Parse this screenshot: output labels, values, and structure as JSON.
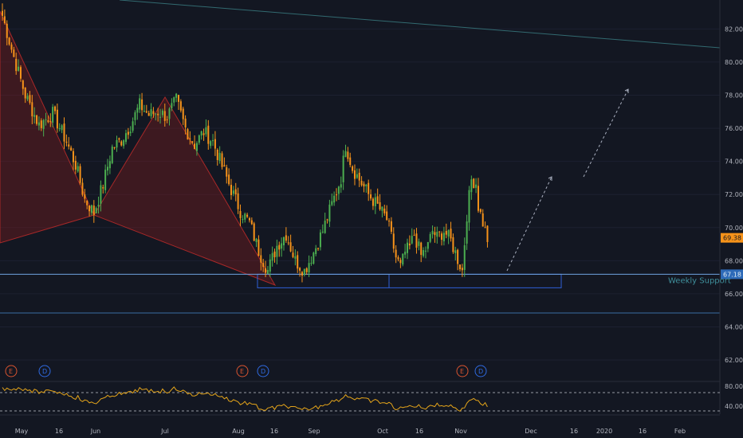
{
  "chart_data": {
    "type": "candlestick",
    "y_axis": {
      "ticks": [
        62,
        64,
        66,
        68,
        70,
        72,
        74,
        76,
        78,
        80,
        82
      ],
      "range": [
        60.75,
        83.75
      ]
    },
    "x_axis": {
      "ticks": [
        "May",
        "16",
        "Jun",
        "Jul",
        "Aug",
        "16",
        "Sep",
        "Oct",
        "16",
        "Nov",
        "Dec",
        "16",
        "2020",
        "16",
        "Feb"
      ]
    },
    "price_label": "69.38",
    "support_label": "67.18",
    "support_text": "Weekly Support",
    "colors": {
      "up": "#4caf50",
      "down": "#f7931a",
      "support": "#4a90d9",
      "pattern": "#8b1e1e",
      "rsi": "#e5a51a"
    },
    "events": [
      "E",
      "D",
      "E",
      "D",
      "E",
      "D"
    ],
    "rsi": {
      "ticks": [
        "80.00",
        "40.00"
      ],
      "levels": [
        70,
        30
      ]
    },
    "candles_anchor_closes": [
      [
        0,
        82.8
      ],
      [
        5,
        80.3
      ],
      [
        10,
        78.0
      ],
      [
        16,
        76.2
      ],
      [
        22,
        76.9
      ],
      [
        28,
        75.2
      ],
      [
        32,
        73.8
      ],
      [
        36,
        71.7
      ],
      [
        40,
        70.9
      ],
      [
        44,
        72.6
      ],
      [
        48,
        74.8
      ],
      [
        52,
        75.3
      ],
      [
        56,
        76.2
      ],
      [
        60,
        77.4
      ],
      [
        64,
        76.8
      ],
      [
        68,
        77.0
      ],
      [
        72,
        76.7
      ],
      [
        76,
        77.7
      ],
      [
        80,
        76.0
      ],
      [
        84,
        75.0
      ],
      [
        88,
        75.8
      ],
      [
        92,
        75.2
      ],
      [
        96,
        73.7
      ],
      [
        100,
        72.3
      ],
      [
        104,
        71.0
      ],
      [
        108,
        70.3
      ],
      [
        112,
        68.6
      ],
      [
        116,
        67.4
      ],
      [
        120,
        68.9
      ],
      [
        124,
        69.6
      ],
      [
        128,
        68.0
      ],
      [
        132,
        67.4
      ],
      [
        136,
        68.5
      ],
      [
        140,
        69.8
      ],
      [
        144,
        71.4
      ],
      [
        148,
        73.0
      ],
      [
        150,
        75.0
      ],
      [
        153,
        73.6
      ],
      [
        156,
        72.9
      ],
      [
        160,
        72.0
      ],
      [
        164,
        71.3
      ],
      [
        168,
        70.5
      ],
      [
        170,
        69.4
      ],
      [
        172,
        68.2
      ],
      [
        174,
        67.6
      ],
      [
        176,
        68.5
      ],
      [
        178,
        68.8
      ],
      [
        180,
        69.6
      ],
      [
        183,
        68.3
      ],
      [
        186,
        68.9
      ],
      [
        188,
        69.8
      ],
      [
        190,
        69.4
      ],
      [
        193,
        69.8
      ],
      [
        196,
        69.2
      ],
      [
        199,
        68.1
      ],
      [
        201,
        67.4
      ],
      [
        203,
        70.8
      ],
      [
        205,
        72.9
      ],
      [
        207,
        72.7
      ],
      [
        208,
        71.3
      ],
      [
        210,
        70.3
      ],
      [
        212,
        69.3
      ]
    ]
  }
}
